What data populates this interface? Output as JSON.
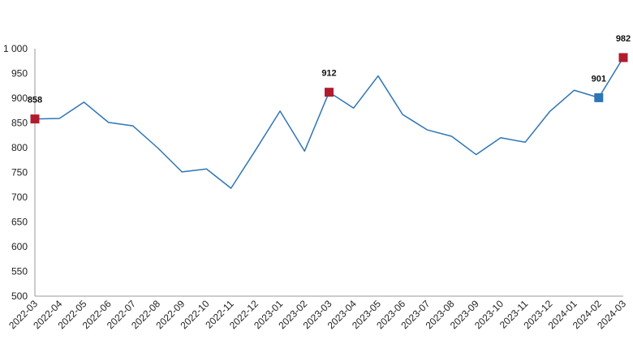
{
  "chart_data": {
    "type": "line",
    "title": "",
    "xlabel": "",
    "ylabel": "",
    "ylim": [
      500,
      1000
    ],
    "yticks": [
      500,
      550,
      600,
      650,
      700,
      750,
      800,
      850,
      900,
      950,
      1000
    ],
    "ytick_labels": [
      "500",
      "550",
      "600",
      "650",
      "700",
      "750",
      "800",
      "850",
      "900",
      "950",
      "1 000"
    ],
    "grid": false,
    "legend": "none",
    "line_color": "#2e75b6",
    "categories": [
      "2022-03",
      "2022-04",
      "2022-05",
      "2022-06",
      "2022-07",
      "2022-08",
      "2022-09",
      "2022-10",
      "2022-11",
      "2022-12",
      "2023-01",
      "2023-02",
      "2023-03",
      "2023-04",
      "2023-05",
      "2023-06",
      "2023-07",
      "2023-08",
      "2023-09",
      "2023-10",
      "2023-11",
      "2023-12",
      "2024-01",
      "2024-02",
      "2024-03"
    ],
    "series": [
      {
        "values": [
          858,
          859,
          892,
          851,
          844,
          800,
          751,
          757,
          718,
          795,
          874,
          793,
          912,
          880,
          945,
          867,
          836,
          823,
          786,
          820,
          811,
          873,
          916,
          901,
          982
        ]
      }
    ],
    "highlights": [
      {
        "index": 0,
        "label": "858",
        "color": "#b01c2e"
      },
      {
        "index": 12,
        "label": "912",
        "color": "#b01c2e"
      },
      {
        "index": 23,
        "label": "901",
        "color": "#2e75b6"
      },
      {
        "index": 24,
        "label": "982",
        "color": "#b01c2e"
      }
    ]
  }
}
